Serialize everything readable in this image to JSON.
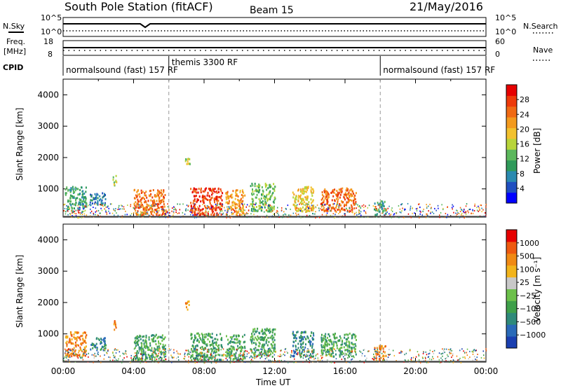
{
  "header": {
    "station": "South Pole Station (fitACF)",
    "beam": "Beam 15",
    "date": "21/May/2016"
  },
  "noise_panel": {
    "left_label": "N.Sky",
    "right_label": "N.Search",
    "left_ticks": [
      "10^5",
      "10^0"
    ],
    "right_ticks": [
      "10^5",
      "10^0"
    ]
  },
  "freq_panel": {
    "left_label_1": "Freq.",
    "left_label_2": "[MHz]",
    "right_label": "Nave",
    "left_ticks": [
      "18",
      "8"
    ],
    "right_ticks": [
      "60",
      "0"
    ]
  },
  "cpid": {
    "label": "CPID",
    "segments": [
      {
        "name": "normalsound (fast) 157 RF",
        "start_hour": 0,
        "end_hour": 6
      },
      {
        "name": "themis 3300 RF",
        "start_hour": 6,
        "end_hour": 18
      },
      {
        "name": "normalsound (fast) 157 RF",
        "start_hour": 18,
        "end_hour": 24
      }
    ]
  },
  "chart_data": [
    {
      "type": "heatmap",
      "title": "Power",
      "ylabel": "Slant Range [km]",
      "xlim": [
        0,
        24
      ],
      "ylim": [
        100,
        4500
      ],
      "yticks": [
        1000,
        2000,
        3000,
        4000
      ],
      "colorbar": {
        "label": "Power [dB]",
        "ticks": [
          "4",
          "8",
          "12",
          "16",
          "20",
          "24",
          "28"
        ],
        "colors": [
          "#0000ff",
          "#1f4fc0",
          "#2a8ab0",
          "#2f9a5a",
          "#5cb85c",
          "#b8d43a",
          "#f2c12e",
          "#f39a1e",
          "#f06a14",
          "#ee3a0a",
          "#e60000"
        ]
      },
      "clusters": [
        {
          "start_hour": 0.1,
          "end_hour": 1.3,
          "range_low": 300,
          "range_high": 1100,
          "level": 3
        },
        {
          "start_hour": 1.5,
          "end_hour": 2.4,
          "range_low": 500,
          "range_high": 900,
          "level": 2
        },
        {
          "start_hour": 2.8,
          "end_hour": 3.0,
          "range_low": 1100,
          "range_high": 1450,
          "level": 5
        },
        {
          "start_hour": 4.0,
          "end_hour": 5.8,
          "range_low": 150,
          "range_high": 1000,
          "level": 8
        },
        {
          "start_hour": 6.9,
          "end_hour": 7.2,
          "range_low": 1800,
          "range_high": 2100,
          "level": 5
        },
        {
          "start_hour": 7.2,
          "end_hour": 9.0,
          "range_low": 150,
          "range_high": 1050,
          "level": 9
        },
        {
          "start_hour": 9.2,
          "end_hour": 10.3,
          "range_low": 200,
          "range_high": 1000,
          "level": 7
        },
        {
          "start_hour": 10.6,
          "end_hour": 12.0,
          "range_low": 300,
          "range_high": 1200,
          "level": 4
        },
        {
          "start_hour": 13.0,
          "end_hour": 14.2,
          "range_low": 300,
          "range_high": 1100,
          "level": 6
        },
        {
          "start_hour": 14.6,
          "end_hour": 16.6,
          "range_low": 300,
          "range_high": 1050,
          "level": 8
        },
        {
          "start_hour": 17.6,
          "end_hour": 18.3,
          "range_low": 150,
          "range_high": 650,
          "level": 3
        }
      ]
    },
    {
      "type": "heatmap",
      "title": "Velocity",
      "xlabel": "Time UT",
      "ylabel": "Slant Range [km]",
      "xlim": [
        0,
        24
      ],
      "ylim": [
        100,
        4500
      ],
      "yticks": [
        1000,
        2000,
        3000,
        4000
      ],
      "xticks": [
        "00:00",
        "04:00",
        "08:00",
        "12:00",
        "16:00",
        "20:00",
        "00:00"
      ],
      "colorbar": {
        "label": "Velocity [m s⁻¹]",
        "ticks": [
          "1000",
          "500",
          "100",
          "25",
          "−25",
          "−100",
          "−500",
          "−1000"
        ],
        "colors": [
          "#1a3fb0",
          "#2a6ab8",
          "#2f8a7a",
          "#3fa04a",
          "#6cc04a",
          "#c8c8c8",
          "#f2b41c",
          "#f08a14",
          "#ee5a10",
          "#e60000"
        ]
      },
      "clusters": [
        {
          "start_hour": 0.1,
          "end_hour": 1.3,
          "range_low": 300,
          "range_high": 1100,
          "level": 7
        },
        {
          "start_hour": 1.5,
          "end_hour": 2.4,
          "range_low": 500,
          "range_high": 900,
          "level": 2
        },
        {
          "start_hour": 2.8,
          "end_hour": 3.0,
          "range_low": 1100,
          "range_high": 1450,
          "level": 7
        },
        {
          "start_hour": 4.0,
          "end_hour": 5.8,
          "range_low": 150,
          "range_high": 1000,
          "level": 3
        },
        {
          "start_hour": 6.9,
          "end_hour": 7.2,
          "range_low": 1800,
          "range_high": 2100,
          "level": 7
        },
        {
          "start_hour": 7.2,
          "end_hour": 9.0,
          "range_low": 150,
          "range_high": 1050,
          "level": 3
        },
        {
          "start_hour": 9.2,
          "end_hour": 10.3,
          "range_low": 200,
          "range_high": 1000,
          "level": 3
        },
        {
          "start_hour": 10.6,
          "end_hour": 12.0,
          "range_low": 300,
          "range_high": 1200,
          "level": 3
        },
        {
          "start_hour": 13.0,
          "end_hour": 14.2,
          "range_low": 300,
          "range_high": 1100,
          "level": 2
        },
        {
          "start_hour": 14.6,
          "end_hour": 16.6,
          "range_low": 300,
          "range_high": 1050,
          "level": 3
        },
        {
          "start_hour": 17.6,
          "end_hour": 18.3,
          "range_low": 150,
          "range_high": 650,
          "level": 7
        }
      ]
    }
  ]
}
